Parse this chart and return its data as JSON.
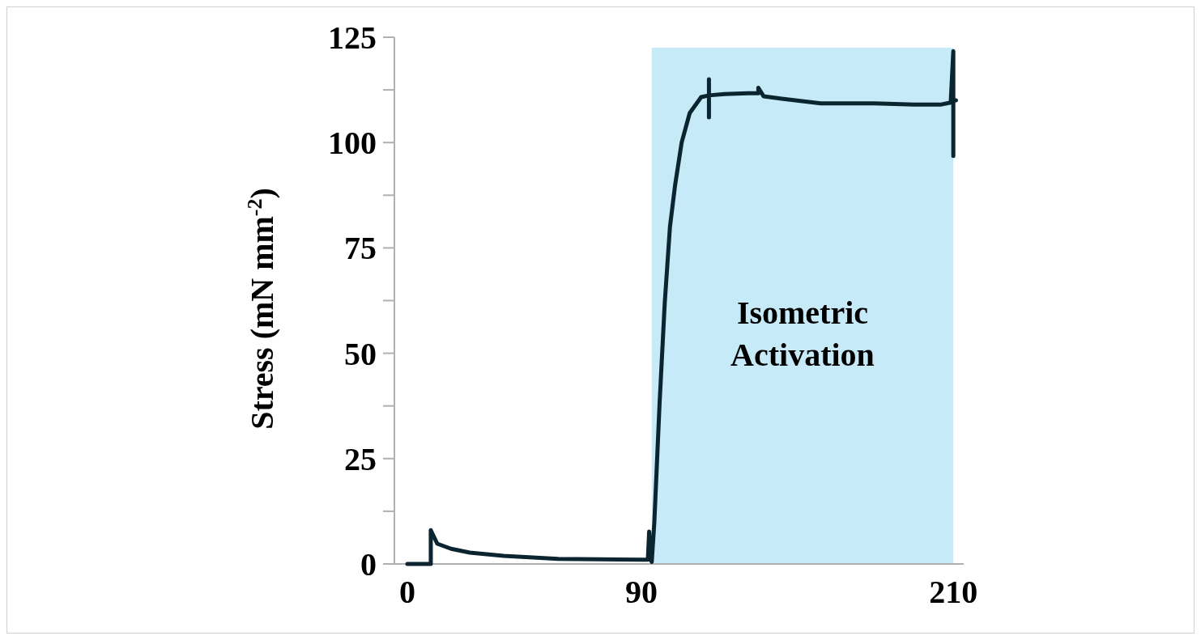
{
  "chart_data": {
    "type": "line",
    "ylabel": "Stress (mN mm$^{-2}$)",
    "xlim": [
      -5,
      214
    ],
    "xticks": [
      0,
      90,
      210
    ],
    "ylim": [
      0,
      125
    ],
    "yticks": [
      0,
      {
        "value": 12.5,
        "label": null
      },
      25,
      {
        "value": 37.5,
        "label": null
      },
      50,
      {
        "value": 62.5,
        "label": null
      },
      75,
      {
        "value": 87.5,
        "label": null
      },
      100,
      {
        "value": 112.5,
        "label": null
      },
      125
    ],
    "grid": false,
    "marker": "none",
    "line_style": "solid",
    "bands": [
      {
        "axis": "x",
        "from": 94,
        "to": 210,
        "label": "Isometric Activation",
        "color": "#c6eaf8"
      }
    ],
    "series": [
      {
        "color": "#0a2530",
        "x": [
          0,
          9,
          9,
          11.5,
          16.8,
          24,
          37,
          58,
          90,
          92.5,
          93,
          93.5,
          94,
          95,
          97,
          99,
          101,
          103,
          105.5,
          108.6,
          113,
          116,
          116,
          116,
          116,
          122,
          131,
          135,
          135,
          137,
          144,
          159,
          179.5,
          195,
          205,
          209,
          210,
          210,
          210,
          210,
          211
        ],
        "values": [
          0,
          0,
          8,
          4.8,
          3.6,
          2.7,
          1.9,
          1.2,
          1,
          1,
          7.7,
          1,
          0.5,
          10,
          38,
          62,
          80,
          90,
          100,
          107,
          110.8,
          111.2,
          115,
          106,
          111.2,
          111.5,
          111.7,
          111.7,
          113,
          111,
          110.4,
          109.3,
          109.3,
          109,
          109,
          109.5,
          121.7,
          96.8,
          109,
          110,
          110
        ]
      }
    ]
  }
}
